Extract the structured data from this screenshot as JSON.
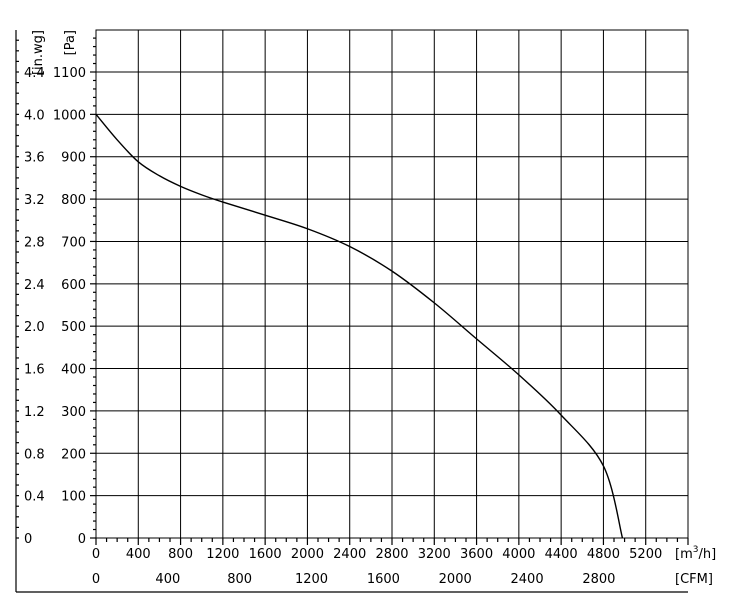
{
  "chart_data": {
    "type": "line",
    "y_label_in": "[in.wg]",
    "y_label_pa": "[Pa]",
    "x_label_m3h": "[m",
    "x_label_m3h_sup": "3",
    "x_label_m3h_tail": "/h]",
    "x_label_cfm": "[CFM]",
    "ylim_pa": [
      0,
      1200
    ],
    "xlim_m3h": [
      0,
      5600
    ],
    "y_ticks": [
      {
        "pa": 0,
        "pa_label": "0",
        "in_label": "0"
      },
      {
        "pa": 100,
        "pa_label": "100",
        "in_label": "0.4"
      },
      {
        "pa": 200,
        "pa_label": "200",
        "in_label": "0.8"
      },
      {
        "pa": 300,
        "pa_label": "300",
        "in_label": "1.2"
      },
      {
        "pa": 400,
        "pa_label": "400",
        "in_label": "1.6"
      },
      {
        "pa": 500,
        "pa_label": "500",
        "in_label": "2.0"
      },
      {
        "pa": 600,
        "pa_label": "600",
        "in_label": "2.4"
      },
      {
        "pa": 700,
        "pa_label": "700",
        "in_label": "2.8"
      },
      {
        "pa": 800,
        "pa_label": "800",
        "in_label": "3.2"
      },
      {
        "pa": 900,
        "pa_label": "900",
        "in_label": "3.6"
      },
      {
        "pa": 1000,
        "pa_label": "1000",
        "in_label": "4.0"
      },
      {
        "pa": 1100,
        "pa_label": "1100",
        "in_label": "4.4"
      }
    ],
    "x_ticks_m3h": [
      "0",
      "400",
      "800",
      "1200",
      "1600",
      "2000",
      "2400",
      "2800",
      "3200",
      "3600",
      "4000",
      "4400",
      "4800",
      "5200"
    ],
    "x_ticks_cfm": [
      {
        "cfm": 0,
        "label": "0"
      },
      {
        "cfm": 400,
        "label": "400"
      },
      {
        "cfm": 800,
        "label": "800"
      },
      {
        "cfm": 1200,
        "label": "1200"
      },
      {
        "cfm": 1600,
        "label": "1600"
      },
      {
        "cfm": 2000,
        "label": "2000"
      },
      {
        "cfm": 2400,
        "label": "2400"
      },
      {
        "cfm": 2800,
        "label": "2800"
      }
    ],
    "grid": true,
    "series": [
      {
        "x": [
          0,
          200,
          400,
          600,
          800,
          1000,
          1200,
          1600,
          2000,
          2400,
          2800,
          3200,
          3600,
          4000,
          4400,
          4800,
          4980
        ],
        "y": [
          1000,
          940,
          888,
          855,
          830,
          810,
          793,
          762,
          730,
          688,
          630,
          555,
          470,
          385,
          290,
          170,
          0
        ]
      }
    ]
  }
}
